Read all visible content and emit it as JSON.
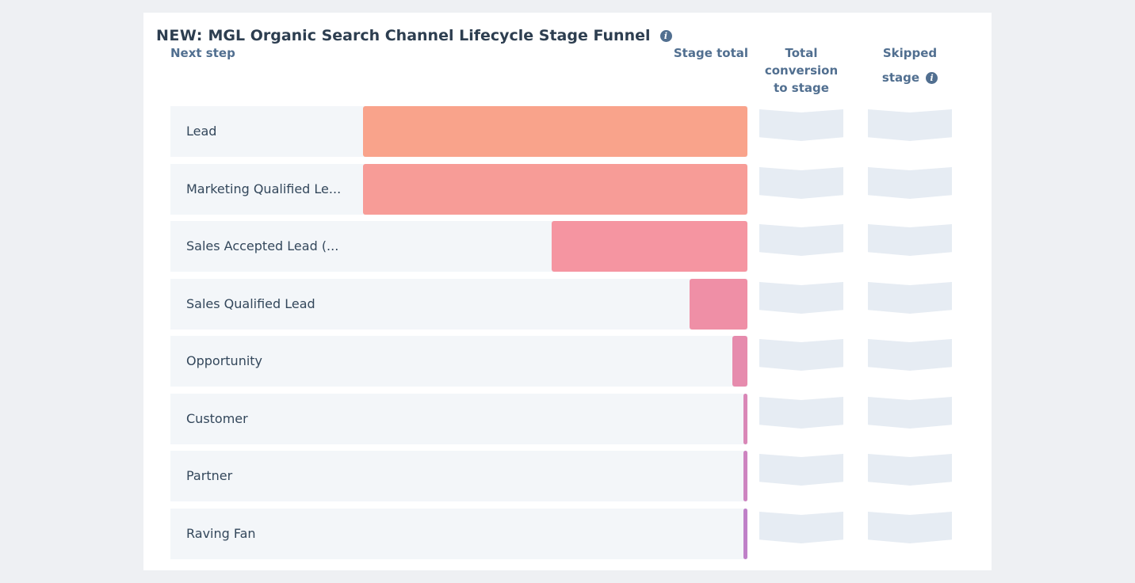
{
  "report": {
    "title_prefix": "NEW:",
    "title": "MGL Organic Search Channel Lifecycle Stage Funnel"
  },
  "columns": {
    "next_step": "Next step",
    "stage_total": "Stage total",
    "total_conversion_line1": "Total",
    "total_conversion_line2": "conversion",
    "total_conversion_line3": "to stage",
    "skipped_line1": "Skipped",
    "skipped_line2": "stage"
  },
  "chart_data": {
    "type": "bar",
    "orientation": "horizontal",
    "categories": [
      "Lead",
      "Marketing Qualified Le...",
      "Sales Accepted Lead (...",
      "Sales Qualified Lead",
      "Opportunity",
      "Customer",
      "Partner",
      "Raving Fan"
    ],
    "values": [
      100,
      100,
      51,
      15,
      4,
      1,
      1,
      1
    ],
    "value_unit": "percent of top stage",
    "colors": [
      "#f9a38b",
      "#f79c97",
      "#f595a1",
      "#ef8fa6",
      "#e68bad",
      "#d987b7",
      "#cd84c0",
      "#bf80c8"
    ],
    "title": "MGL Organic Search Channel Lifecycle Stage Funnel",
    "xlabel": "Stage total",
    "ylabel": "Next step"
  }
}
